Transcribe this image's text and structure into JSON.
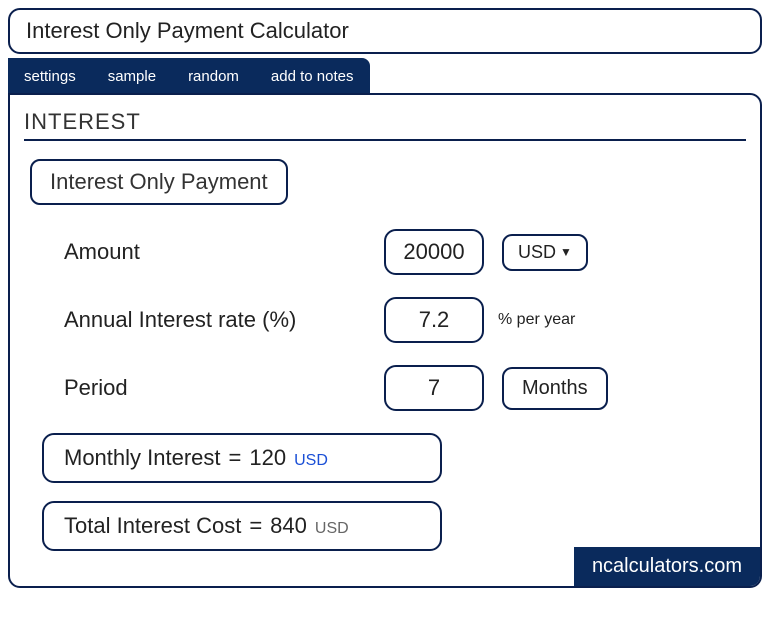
{
  "title": "Interest Only Payment Calculator",
  "tabs": {
    "settings": "settings",
    "sample": "sample",
    "random": "random",
    "add_to_notes": "add to notes"
  },
  "section": {
    "heading": "INTEREST",
    "subtitle": "Interest Only Payment"
  },
  "fields": {
    "amount": {
      "label": "Amount",
      "value": "20000",
      "currency": "USD"
    },
    "rate": {
      "label": "Annual Interest rate (%)",
      "value": "7.2",
      "unit": "% per year"
    },
    "period": {
      "label": "Period",
      "value": "7",
      "unit": "Months"
    }
  },
  "results": {
    "monthly": {
      "label": "Monthly Interest",
      "equals": "=",
      "value": "120",
      "currency": "USD"
    },
    "total": {
      "label": "Total Interest Cost",
      "equals": "=",
      "value": "840",
      "currency": "USD"
    }
  },
  "footer": "ncalculators.com",
  "colors": {
    "primary": "#0a1f4d",
    "tab_bg": "#0a2a5c",
    "link_blue": "#1a4fd6"
  }
}
